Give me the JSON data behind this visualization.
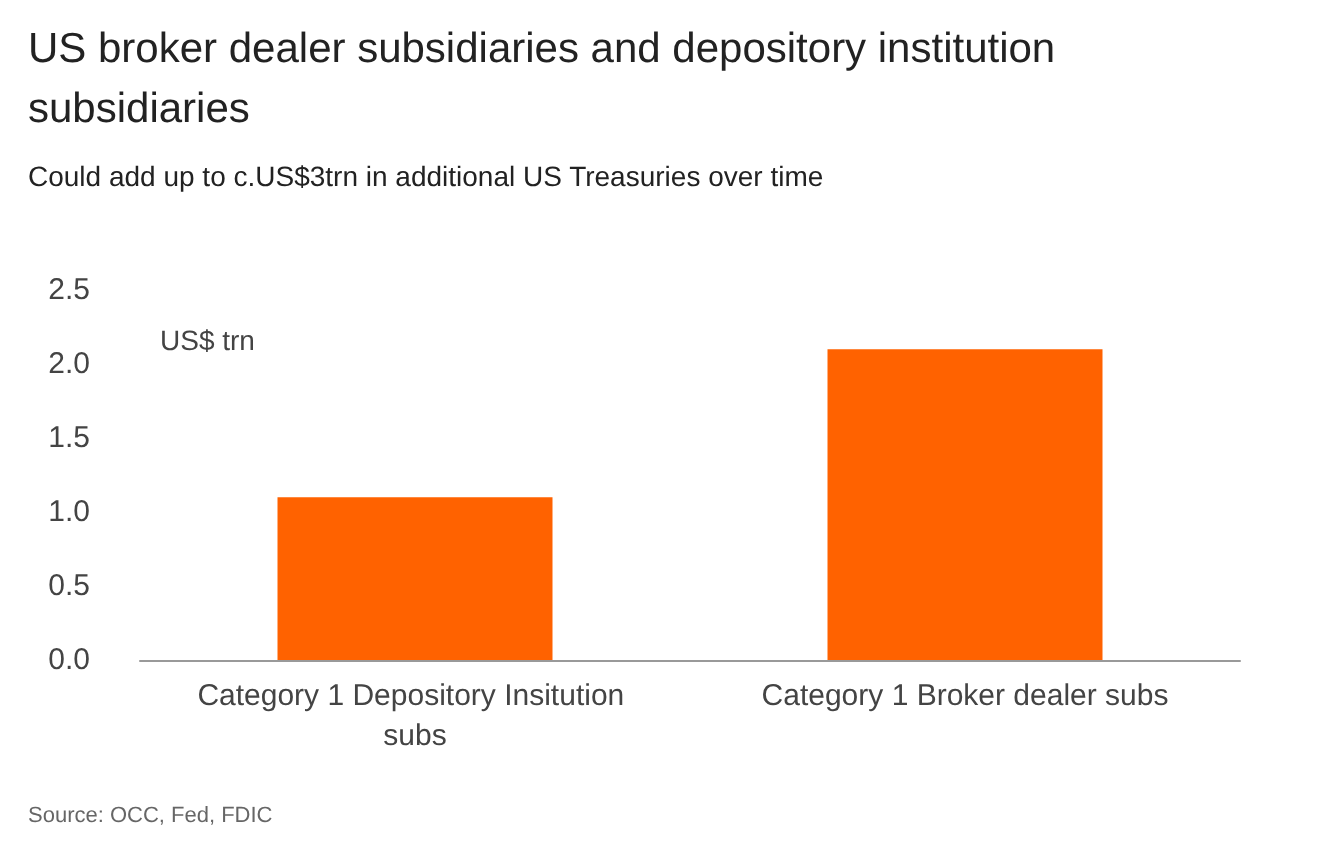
{
  "chart_data": {
    "type": "bar",
    "title": "US broker dealer subsidiaries and depository institution subsidiaries",
    "subtitle": "Could add up to c.US$3trn in additional US Treasuries over time",
    "ylabel": "US$ trn",
    "categories": [
      "Category 1 Depository Insitution subs",
      "Category 1 Broker dealer subs"
    ],
    "values": [
      1.1,
      2.1
    ],
    "color": "#ff6200",
    "ylim": [
      0,
      2.5
    ],
    "yticks": [
      {
        "value": 0,
        "label": "0.0"
      },
      {
        "value": 0.5,
        "label": "0.5"
      },
      {
        "value": 1,
        "label": "1.0"
      },
      {
        "value": 1.5,
        "label": "1.5"
      },
      {
        "value": 2,
        "label": "2.0"
      },
      {
        "value": 2.5,
        "label": "2.5"
      }
    ],
    "grid": false,
    "annotations": [
      "Source: OCC, Fed, FDIC"
    ]
  }
}
